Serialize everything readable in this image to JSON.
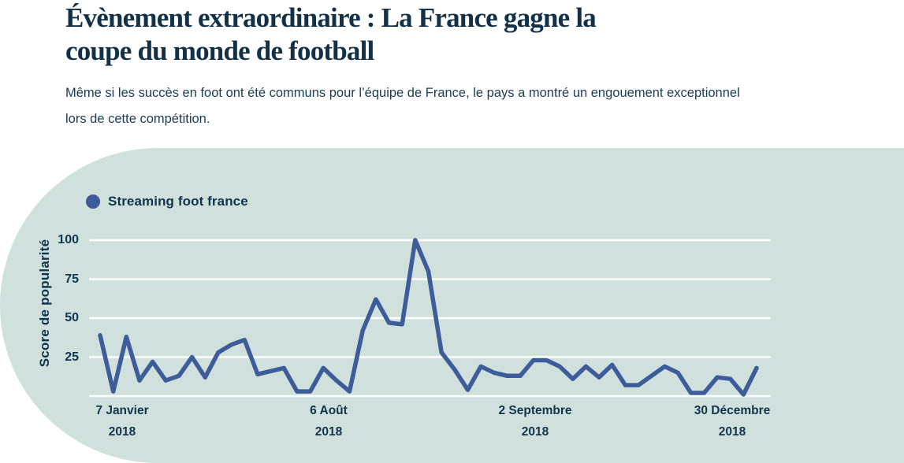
{
  "page": {
    "title_line1": "Évènement extraordinaire : La France gagne la",
    "title_line2": "coupe du monde de football",
    "subtitle_line1": "Même si les succès en foot ont été communs pour l’équipe de France, le pays a montré un engouement exceptionnel",
    "subtitle_line2": "lors de cette compétition."
  },
  "colors": {
    "title_text": "#123148",
    "body_text": "#1c3c54",
    "panel_background": "#d0e0dd",
    "line": "#3d5c99",
    "axis_text": "#10344d",
    "gridline": "#ffffff"
  },
  "legend": {
    "label": "Streaming foot france",
    "dot_color": "#3d5c99"
  },
  "chart_data": {
    "type": "line",
    "title": "",
    "ylabel": "Score de popularité",
    "xlabel": "",
    "ylim": [
      0,
      100
    ],
    "y_ticks": [
      100,
      75,
      50,
      25
    ],
    "grid": "horizontal",
    "legend_position": "top-left",
    "x_axis_labels": [
      {
        "line1": "7 Janvier",
        "line2": "2018"
      },
      {
        "line1": "6 Août",
        "line2": "2018"
      },
      {
        "line1": "2 Septembre",
        "line2": "2018"
      },
      {
        "line1": "30 Décembre",
        "line2": "2018"
      }
    ],
    "series": [
      {
        "name": "Streaming foot france",
        "color": "#3d5c99",
        "values": [
          39,
          3,
          38,
          10,
          22,
          10,
          13,
          25,
          12,
          28,
          33,
          36,
          14,
          16,
          18,
          3,
          3,
          18,
          10,
          3,
          42,
          62,
          47,
          46,
          100,
          80,
          28,
          17,
          4,
          19,
          15,
          13,
          13,
          23,
          23,
          19,
          11,
          19,
          12,
          20,
          7,
          7,
          13,
          19,
          15,
          2,
          2,
          12,
          11,
          1,
          18
        ]
      }
    ]
  }
}
